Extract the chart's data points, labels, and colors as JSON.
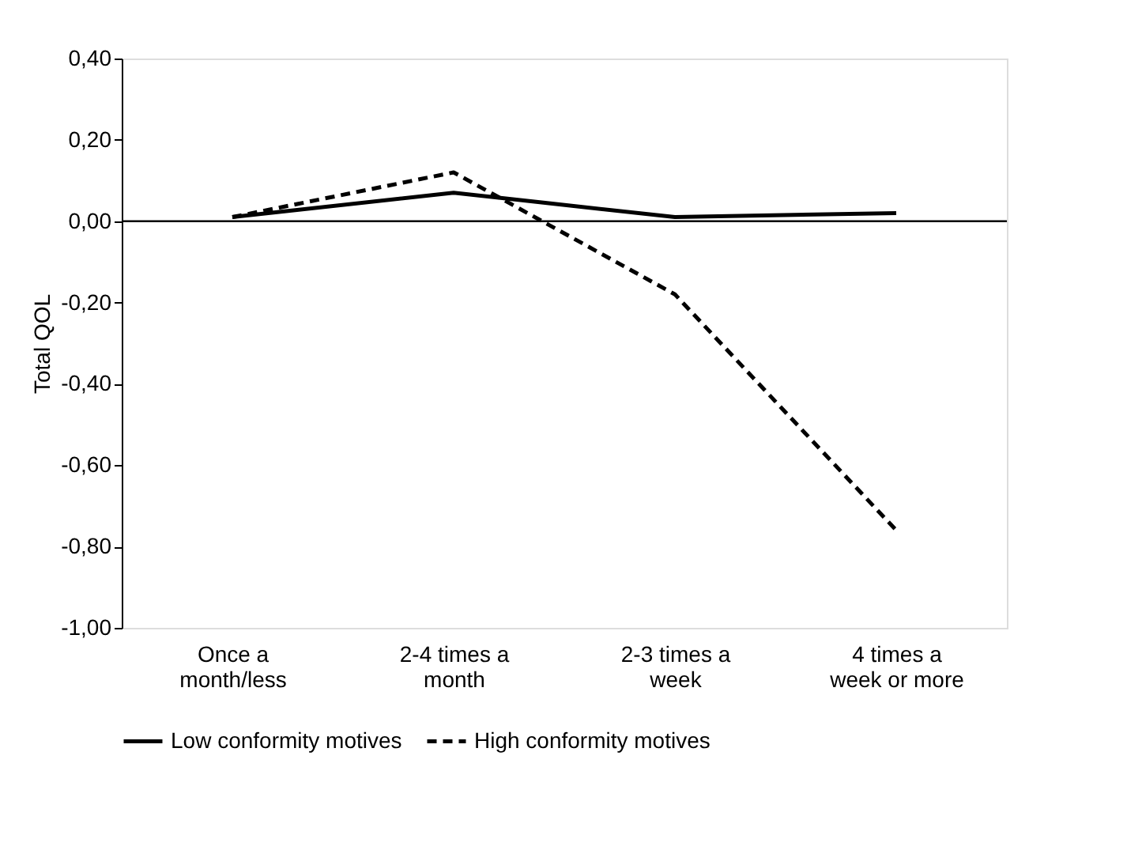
{
  "chart_data": {
    "type": "line",
    "ylabel": "Total QOL",
    "categories": [
      "Once a month/less",
      "2-4 times a month",
      "2-3 times a week",
      "4 times a week or more"
    ],
    "series": [
      {
        "name": "Low conformity motives",
        "color": "#000000",
        "line_style": "solid",
        "values": [
          0.01,
          0.07,
          0.01,
          0.02
        ]
      },
      {
        "name": "High conformity motives",
        "color": "#000000",
        "line_style": "dashed",
        "values": [
          0.01,
          0.12,
          -0.18,
          -0.76
        ]
      }
    ],
    "ylim": [
      -1.0,
      0.4
    ],
    "yticks": [
      {
        "value": -1.0,
        "label": "-1,00"
      },
      {
        "value": -0.8,
        "label": "-0,80"
      },
      {
        "value": -0.6,
        "label": "-0,60"
      },
      {
        "value": -0.4,
        "label": "-0,40"
      },
      {
        "value": -0.2,
        "label": "-0,20"
      },
      {
        "value": 0,
        "label": "0,00"
      },
      {
        "value": 0.2,
        "label": "0,20"
      },
      {
        "value": 0.4,
        "label": "0,40"
      }
    ],
    "ref_lines": [
      {
        "axis": "y",
        "value": 0,
        "color": "#000000"
      }
    ],
    "grid": false,
    "legend": "bottom",
    "marker": "none"
  }
}
